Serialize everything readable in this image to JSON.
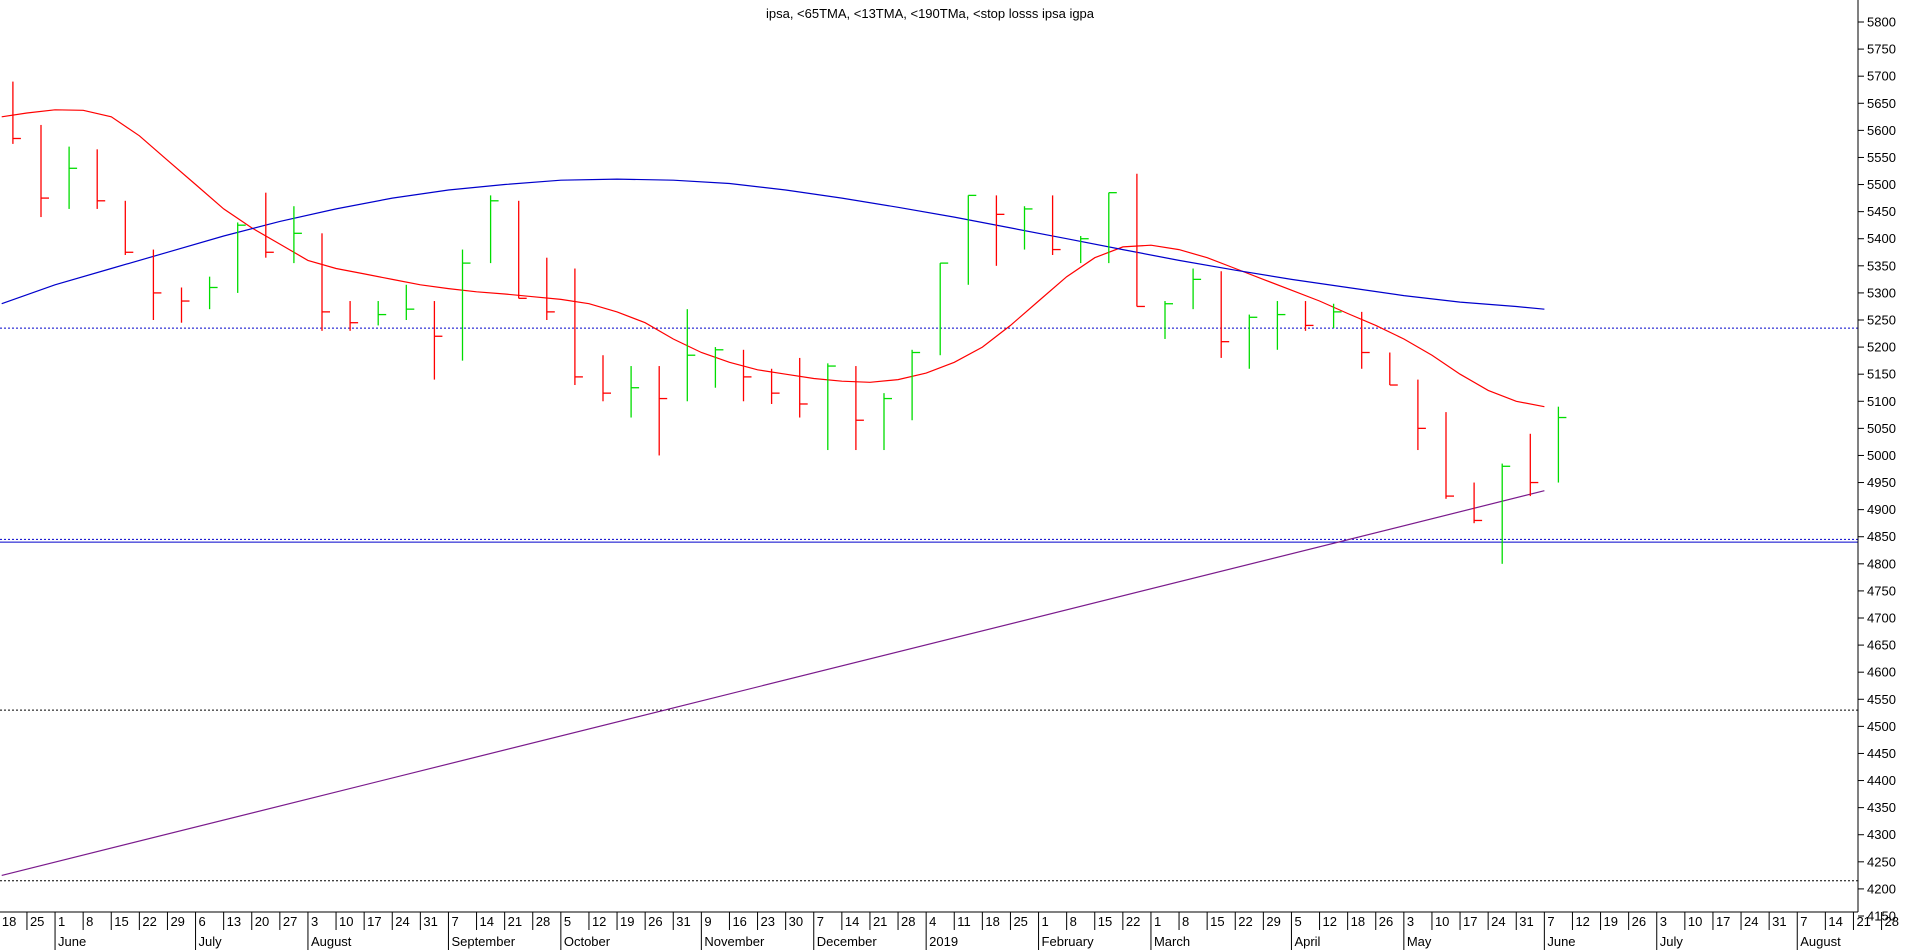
{
  "chart_data": {
    "type": "bar",
    "subtype": "ohlc",
    "title": "ipsa, <65TMA, <13TMA, <190TMa, <stop losss ipsa igpa",
    "xlabel": "",
    "ylabel": "",
    "ylim": [
      4100,
      5840
    ],
    "y_ticks": [
      4150,
      4200,
      4250,
      4300,
      4350,
      4400,
      4450,
      4500,
      4550,
      4600,
      4650,
      4700,
      4750,
      4800,
      4850,
      4900,
      4950,
      5000,
      5050,
      5100,
      5150,
      5200,
      5250,
      5300,
      5350,
      5400,
      5450,
      5500,
      5550,
      5600,
      5650,
      5700,
      5750,
      5800
    ],
    "grid": false,
    "legend": "none",
    "x_axis": {
      "ticks": [
        {
          "w": -1.5,
          "label": "18"
        },
        {
          "w": -0.5,
          "label": "25"
        },
        {
          "w": 0.5,
          "label": "1"
        },
        {
          "w": 1.5,
          "label": "8"
        },
        {
          "w": 2.5,
          "label": "15"
        },
        {
          "w": 3.5,
          "label": "22"
        },
        {
          "w": 4.5,
          "label": "29"
        },
        {
          "w": 5.5,
          "label": "6"
        },
        {
          "w": 6.5,
          "label": "13"
        },
        {
          "w": 7.5,
          "label": "20"
        },
        {
          "w": 8.5,
          "label": "27"
        },
        {
          "w": 9.5,
          "label": "3"
        },
        {
          "w": 10.5,
          "label": "10"
        },
        {
          "w": 11.5,
          "label": "17"
        },
        {
          "w": 12.5,
          "label": "24"
        },
        {
          "w": 13.5,
          "label": "31"
        },
        {
          "w": 14.5,
          "label": "7"
        },
        {
          "w": 15.5,
          "label": "14"
        },
        {
          "w": 16.5,
          "label": "21"
        },
        {
          "w": 17.5,
          "label": "28"
        },
        {
          "w": 18.5,
          "label": "5"
        },
        {
          "w": 19.5,
          "label": "12"
        },
        {
          "w": 20.5,
          "label": "19"
        },
        {
          "w": 21.5,
          "label": "26"
        },
        {
          "w": 22.5,
          "label": "31"
        },
        {
          "w": 23.5,
          "label": "9"
        },
        {
          "w": 24.5,
          "label": "16"
        },
        {
          "w": 25.5,
          "label": "23"
        },
        {
          "w": 26.5,
          "label": "30"
        },
        {
          "w": 27.5,
          "label": "7"
        },
        {
          "w": 28.5,
          "label": "14"
        },
        {
          "w": 29.5,
          "label": "21"
        },
        {
          "w": 30.5,
          "label": "28"
        },
        {
          "w": 31.5,
          "label": "4"
        },
        {
          "w": 32.5,
          "label": "11"
        },
        {
          "w": 33.5,
          "label": "18"
        },
        {
          "w": 34.5,
          "label": "25"
        },
        {
          "w": 35.5,
          "label": "1"
        },
        {
          "w": 36.5,
          "label": "8"
        },
        {
          "w": 37.5,
          "label": "15"
        },
        {
          "w": 38.5,
          "label": "22"
        },
        {
          "w": 39.5,
          "label": "1"
        },
        {
          "w": 40.5,
          "label": "8"
        },
        {
          "w": 41.5,
          "label": "15"
        },
        {
          "w": 42.5,
          "label": "22"
        },
        {
          "w": 43.5,
          "label": "29"
        },
        {
          "w": 44.5,
          "label": "5"
        },
        {
          "w": 45.5,
          "label": "12"
        },
        {
          "w": 46.5,
          "label": "18"
        },
        {
          "w": 47.5,
          "label": "26"
        },
        {
          "w": 48.5,
          "label": "3"
        },
        {
          "w": 49.5,
          "label": "10"
        },
        {
          "w": 50.5,
          "label": "17"
        },
        {
          "w": 51.5,
          "label": "24"
        },
        {
          "w": 52.5,
          "label": "31"
        },
        {
          "w": 53.5,
          "label": "7"
        },
        {
          "w": 54.5,
          "label": "12"
        },
        {
          "w": 55.5,
          "label": "19"
        },
        {
          "w": 56.5,
          "label": "26"
        },
        {
          "w": 57.5,
          "label": "3"
        },
        {
          "w": 58.5,
          "label": "10"
        },
        {
          "w": 59.5,
          "label": "17"
        },
        {
          "w": 60.5,
          "label": "24"
        },
        {
          "w": 61.5,
          "label": "31"
        },
        {
          "w": 62.5,
          "label": "7"
        },
        {
          "w": 63.5,
          "label": "14"
        },
        {
          "w": 64.5,
          "label": "21"
        },
        {
          "w": 65.5,
          "label": "28"
        }
      ],
      "months": [
        {
          "w": 0.5,
          "label": "June"
        },
        {
          "w": 5.5,
          "label": "July"
        },
        {
          "w": 9.5,
          "label": "August"
        },
        {
          "w": 14.5,
          "label": "September"
        },
        {
          "w": 18.5,
          "label": "October"
        },
        {
          "w": 23.5,
          "label": "November"
        },
        {
          "w": 27.5,
          "label": "December"
        },
        {
          "w": 31.5,
          "label": "2019"
        },
        {
          "w": 35.5,
          "label": "February"
        },
        {
          "w": 39.5,
          "label": "March"
        },
        {
          "w": 44.5,
          "label": "April"
        },
        {
          "w": 48.5,
          "label": "May"
        },
        {
          "w": 53.5,
          "label": "June"
        },
        {
          "w": 57.5,
          "label": "July"
        },
        {
          "w": 62.5,
          "label": "August"
        }
      ]
    },
    "ohlc": [
      {
        "w": -1,
        "open": 5620,
        "high": 5690,
        "low": 5575,
        "close": 5585
      },
      {
        "w": 0,
        "open": 5560,
        "high": 5610,
        "low": 5440,
        "close": 5475
      },
      {
        "w": 1,
        "open": 5480,
        "high": 5570,
        "low": 5455,
        "close": 5530
      },
      {
        "w": 2,
        "open": 5530,
        "high": 5565,
        "low": 5455,
        "close": 5470
      },
      {
        "w": 3,
        "open": 5470,
        "high": 5470,
        "low": 5370,
        "close": 5375
      },
      {
        "w": 4,
        "open": 5375,
        "high": 5380,
        "low": 5250,
        "close": 5300
      },
      {
        "w": 5,
        "open": 5300,
        "high": 5310,
        "low": 5245,
        "close": 5285
      },
      {
        "w": 6,
        "open": 5285,
        "high": 5330,
        "low": 5270,
        "close": 5310
      },
      {
        "w": 7,
        "open": 5310,
        "high": 5430,
        "low": 5300,
        "close": 5425
      },
      {
        "w": 8,
        "open": 5420,
        "high": 5485,
        "low": 5365,
        "close": 5375
      },
      {
        "w": 9,
        "open": 5375,
        "high": 5460,
        "low": 5355,
        "close": 5410
      },
      {
        "w": 10,
        "open": 5410,
        "high": 5410,
        "low": 5230,
        "close": 5265
      },
      {
        "w": 11,
        "open": 5265,
        "high": 5285,
        "low": 5230,
        "close": 5245
      },
      {
        "w": 12,
        "open": 5245,
        "high": 5285,
        "low": 5240,
        "close": 5260
      },
      {
        "w": 13,
        "open": 5260,
        "high": 5315,
        "low": 5250,
        "close": 5270
      },
      {
        "w": 14,
        "open": 5270,
        "high": 5285,
        "low": 5140,
        "close": 5220
      },
      {
        "w": 15,
        "open": 5220,
        "high": 5380,
        "low": 5175,
        "close": 5355
      },
      {
        "w": 16,
        "open": 5355,
        "high": 5480,
        "low": 5355,
        "close": 5470
      },
      {
        "w": 17,
        "open": 5470,
        "high": 5470,
        "low": 5290,
        "close": 5290
      },
      {
        "w": 18,
        "open": 5290,
        "high": 5365,
        "low": 5250,
        "close": 5265
      },
      {
        "w": 19,
        "open": 5265,
        "high": 5345,
        "low": 5130,
        "close": 5145
      },
      {
        "w": 20,
        "open": 5145,
        "high": 5185,
        "low": 5100,
        "close": 5115
      },
      {
        "w": 21,
        "open": 5115,
        "high": 5165,
        "low": 5070,
        "close": 5125
      },
      {
        "w": 22,
        "open": 5125,
        "high": 5165,
        "low": 5000,
        "close": 5105
      },
      {
        "w": 23,
        "open": 5105,
        "high": 5270,
        "low": 5100,
        "close": 5185
      },
      {
        "w": 24,
        "open": 5185,
        "high": 5200,
        "low": 5125,
        "close": 5195
      },
      {
        "w": 25,
        "open": 5195,
        "high": 5195,
        "low": 5100,
        "close": 5145
      },
      {
        "w": 26,
        "open": 5145,
        "high": 5160,
        "low": 5095,
        "close": 5115
      },
      {
        "w": 27,
        "open": 5115,
        "high": 5180,
        "low": 5070,
        "close": 5095
      },
      {
        "w": 28,
        "open": 5095,
        "high": 5170,
        "low": 5010,
        "close": 5165
      },
      {
        "w": 29,
        "open": 5165,
        "high": 5165,
        "low": 5010,
        "close": 5065
      },
      {
        "w": 30,
        "open": 5065,
        "high": 5115,
        "low": 5010,
        "close": 5105
      },
      {
        "w": 31,
        "open": 5105,
        "high": 5195,
        "low": 5065,
        "close": 5190
      },
      {
        "w": 32,
        "open": 5190,
        "high": 5355,
        "low": 5185,
        "close": 5355
      },
      {
        "w": 33,
        "open": 5355,
        "high": 5480,
        "low": 5315,
        "close": 5480
      },
      {
        "w": 34,
        "open": 5480,
        "high": 5480,
        "low": 5350,
        "close": 5445
      },
      {
        "w": 35,
        "open": 5445,
        "high": 5460,
        "low": 5380,
        "close": 5455
      },
      {
        "w": 36,
        "open": 5455,
        "high": 5480,
        "low": 5370,
        "close": 5380
      },
      {
        "w": 37,
        "open": 5380,
        "high": 5405,
        "low": 5355,
        "close": 5400
      },
      {
        "w": 38,
        "open": 5400,
        "high": 5485,
        "low": 5355,
        "close": 5485
      },
      {
        "w": 39,
        "open": 5485,
        "high": 5520,
        "low": 5275,
        "close": 5275
      },
      {
        "w": 40,
        "open": 5275,
        "high": 5285,
        "low": 5215,
        "close": 5280
      },
      {
        "w": 41,
        "open": 5280,
        "high": 5345,
        "low": 5270,
        "close": 5325
      },
      {
        "w": 42,
        "open": 5325,
        "high": 5340,
        "low": 5180,
        "close": 5210
      },
      {
        "w": 43,
        "open": 5210,
        "high": 5260,
        "low": 5160,
        "close": 5255
      },
      {
        "w": 44,
        "open": 5255,
        "high": 5285,
        "low": 5195,
        "close": 5260
      },
      {
        "w": 45,
        "open": 5260,
        "high": 5285,
        "low": 5230,
        "close": 5240
      },
      {
        "w": 46,
        "open": 5240,
        "high": 5280,
        "low": 5235,
        "close": 5265
      },
      {
        "w": 47,
        "open": 5265,
        "high": 5265,
        "low": 5160,
        "close": 5190
      },
      {
        "w": 48,
        "open": 5190,
        "high": 5190,
        "low": 5130,
        "close": 5130
      },
      {
        "w": 49,
        "open": 5130,
        "high": 5140,
        "low": 5010,
        "close": 5050
      },
      {
        "w": 50,
        "open": 5050,
        "high": 5080,
        "low": 4920,
        "close": 4925
      },
      {
        "w": 51,
        "open": 4925,
        "high": 4950,
        "low": 4875,
        "close": 4880
      },
      {
        "w": 52,
        "open": 4880,
        "high": 4985,
        "low": 4800,
        "close": 4980
      },
      {
        "w": 53,
        "open": 4980,
        "high": 5040,
        "low": 4925,
        "close": 4950
      },
      {
        "w": 54,
        "open": 4950,
        "high": 5090,
        "low": 4950,
        "close": 5070
      }
    ],
    "series": [
      {
        "color": "#ff0000",
        "points": [
          [
            -1.4,
            5625
          ],
          [
            -0.5,
            5632
          ],
          [
            0.5,
            5638
          ],
          [
            1.5,
            5637
          ],
          [
            2.5,
            5625
          ],
          [
            3.5,
            5590
          ],
          [
            4.5,
            5545
          ],
          [
            5.5,
            5500
          ],
          [
            6.5,
            5455
          ],
          [
            7.5,
            5420
          ],
          [
            8.5,
            5390
          ],
          [
            9.5,
            5360
          ],
          [
            10.5,
            5345
          ],
          [
            11.5,
            5335
          ],
          [
            12.5,
            5325
          ],
          [
            13.5,
            5315
          ],
          [
            14.5,
            5308
          ],
          [
            15.5,
            5302
          ],
          [
            16.5,
            5298
          ],
          [
            17.5,
            5293
          ],
          [
            18.5,
            5288
          ],
          [
            19.5,
            5280
          ],
          [
            20.5,
            5265
          ],
          [
            21.5,
            5245
          ],
          [
            22.5,
            5215
          ],
          [
            23.5,
            5190
          ],
          [
            24.5,
            5172
          ],
          [
            25.5,
            5158
          ],
          [
            26.5,
            5150
          ],
          [
            27.5,
            5142
          ],
          [
            28.5,
            5137
          ],
          [
            29.5,
            5135
          ],
          [
            30.5,
            5140
          ],
          [
            31.5,
            5152
          ],
          [
            32.5,
            5172
          ],
          [
            33.5,
            5200
          ],
          [
            34.5,
            5240
          ],
          [
            35.5,
            5285
          ],
          [
            36.5,
            5330
          ],
          [
            37.5,
            5365
          ],
          [
            38.5,
            5385
          ],
          [
            39.5,
            5388
          ],
          [
            40.5,
            5380
          ],
          [
            41.5,
            5365
          ],
          [
            42.5,
            5345
          ],
          [
            43.5,
            5325
          ],
          [
            44.5,
            5305
          ],
          [
            45.5,
            5285
          ],
          [
            46.5,
            5262
          ],
          [
            47.5,
            5240
          ],
          [
            48.5,
            5215
          ],
          [
            49.5,
            5185
          ],
          [
            50.5,
            5150
          ],
          [
            51.5,
            5120
          ],
          [
            52.5,
            5100
          ],
          [
            53.5,
            5090
          ]
        ]
      },
      {
        "color": "#0000cc",
        "points": [
          [
            -1.4,
            5280
          ],
          [
            0.5,
            5315
          ],
          [
            2.5,
            5345
          ],
          [
            4.5,
            5375
          ],
          [
            6.5,
            5405
          ],
          [
            8.5,
            5432
          ],
          [
            10.5,
            5455
          ],
          [
            12.5,
            5475
          ],
          [
            14.5,
            5490
          ],
          [
            16.5,
            5500
          ],
          [
            18.5,
            5508
          ],
          [
            20.5,
            5510
          ],
          [
            22.5,
            5508
          ],
          [
            24.5,
            5502
          ],
          [
            26.5,
            5490
          ],
          [
            28.5,
            5475
          ],
          [
            30.5,
            5458
          ],
          [
            32.5,
            5440
          ],
          [
            34.5,
            5420
          ],
          [
            36.5,
            5400
          ],
          [
            38.5,
            5380
          ],
          [
            40.5,
            5360
          ],
          [
            42.5,
            5342
          ],
          [
            44.5,
            5325
          ],
          [
            46.5,
            5310
          ],
          [
            48.5,
            5295
          ],
          [
            50.5,
            5283
          ],
          [
            52.5,
            5275
          ],
          [
            53.5,
            5270
          ]
        ]
      },
      {
        "color": "#7a1a8c",
        "points": [
          [
            -1.4,
            4225
          ],
          [
            53.5,
            4935
          ]
        ]
      }
    ],
    "horizontal_lines": [
      {
        "value": 5235,
        "color": "#0000cc",
        "style": "dotted"
      },
      {
        "value": 4845,
        "color": "#0000cc",
        "style": "dotted"
      },
      {
        "value": 4840,
        "color": "#0000cc",
        "style": "solid"
      },
      {
        "value": 4530,
        "color": "#000000",
        "style": "dotted"
      },
      {
        "value": 4215,
        "color": "#000000",
        "style": "dotted"
      }
    ],
    "colors": {
      "up": "#00dd00",
      "down": "#ff0000",
      "axis": "#000000"
    }
  }
}
